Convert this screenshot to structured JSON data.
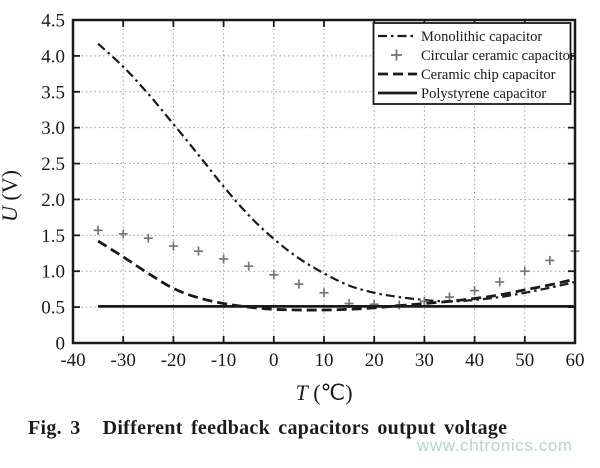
{
  "figure": {
    "caption_fig": "Fig. 3",
    "caption_text": "Different feedback capacitors output voltage",
    "watermark": "www.chtronics.com"
  },
  "colors": {
    "ink": "#1a1a1a",
    "marker_gray": "#767676",
    "grid": "#9e9e9e",
    "watermark_green": "#a3d8ba",
    "background": "#ffffff"
  },
  "chart_data": {
    "type": "line",
    "title": "",
    "xlabel": "T (℃)",
    "ylabel": "U (V)",
    "xlim": [
      -40,
      60
    ],
    "ylim": [
      0,
      4.5
    ],
    "x_tick_labels": [
      "-40",
      "-30",
      "-20",
      "-10",
      "0",
      "10",
      "20",
      "30",
      "40",
      "50",
      "60"
    ],
    "x_ticks": [
      -40,
      -30,
      -20,
      -10,
      0,
      10,
      20,
      30,
      40,
      50,
      60
    ],
    "y_tick_labels": [
      "0",
      "0.5",
      "1.0",
      "1.5",
      "2.0",
      "2.5",
      "3.0",
      "3.5",
      "4.0",
      "4.5"
    ],
    "y_ticks": [
      0,
      0.5,
      1.0,
      1.5,
      2.0,
      2.5,
      3.0,
      3.5,
      4.0,
      4.5
    ],
    "grid": true,
    "legend_position": "top-right",
    "x": [
      -35,
      -30,
      -25,
      -20,
      -15,
      -10,
      -5,
      0,
      5,
      10,
      15,
      20,
      25,
      30,
      35,
      40,
      45,
      50,
      55,
      60
    ],
    "series": [
      {
        "name": "Monolithic capacitor",
        "style": "dash-dot",
        "values": [
          4.17,
          3.85,
          3.47,
          3.05,
          2.62,
          2.18,
          1.78,
          1.45,
          1.18,
          0.97,
          0.8,
          0.7,
          0.64,
          0.6,
          0.58,
          0.6,
          0.64,
          0.7,
          0.77,
          0.85
        ]
      },
      {
        "name": "Circular ceramic capacitor",
        "style": "plus",
        "values": [
          1.57,
          1.52,
          1.46,
          1.35,
          1.28,
          1.17,
          1.07,
          0.95,
          0.82,
          0.7,
          0.55,
          0.54,
          0.53,
          0.58,
          0.64,
          0.73,
          0.85,
          1.0,
          1.15,
          1.28
        ]
      },
      {
        "name": "Ceramic chip capacitor",
        "style": "dashed",
        "values": [
          1.42,
          1.2,
          0.97,
          0.76,
          0.63,
          0.55,
          0.5,
          0.47,
          0.46,
          0.46,
          0.47,
          0.49,
          0.52,
          0.55,
          0.58,
          0.62,
          0.67,
          0.74,
          0.81,
          0.89
        ]
      },
      {
        "name": "Polystyrene capacitor",
        "style": "solid",
        "values": [
          0.51,
          0.51,
          0.51,
          0.51,
          0.51,
          0.51,
          0.51,
          0.51,
          0.51,
          0.51,
          0.51,
          0.51,
          0.51,
          0.51,
          0.51,
          0.51,
          0.51,
          0.51,
          0.51,
          0.51
        ]
      }
    ]
  }
}
